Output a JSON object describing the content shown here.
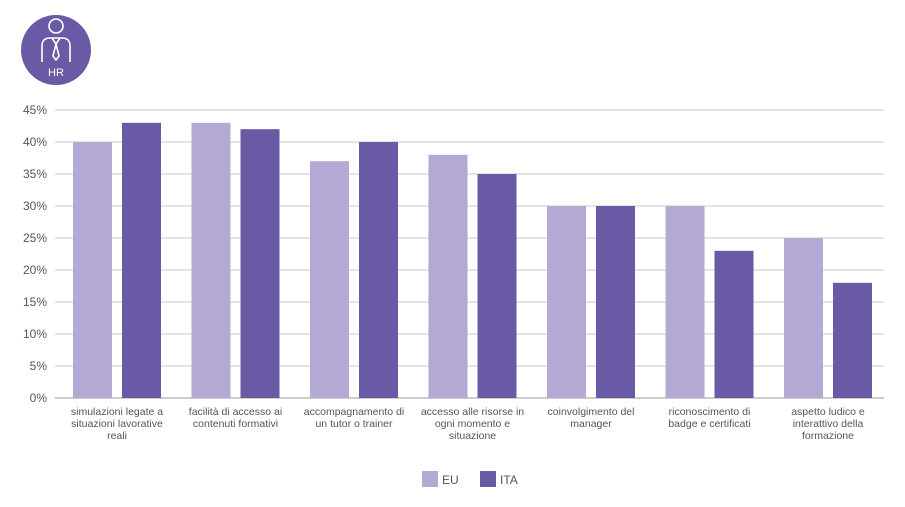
{
  "badge": {
    "label": "HR",
    "icon": "person-tie-icon",
    "color": "#6a5aa6"
  },
  "chart_data": {
    "type": "bar",
    "categories": [
      [
        "simulazioni legate a",
        "situazioni lavorative",
        "reali"
      ],
      [
        "facilità di accesso ai",
        "contenuti formativi"
      ],
      [
        "accompagnamento di",
        "un tutor o trainer"
      ],
      [
        "accesso alle risorse in",
        "ogni momento e",
        "situazione"
      ],
      [
        "coinvolgimento del",
        "manager"
      ],
      [
        "riconoscimento di",
        "badge e certificati"
      ],
      [
        "aspetto ludico e",
        "interattivo della",
        "formazione"
      ]
    ],
    "series": [
      {
        "name": "EU",
        "values": [
          40,
          43,
          37,
          38,
          30,
          30,
          25
        ],
        "color": "#b3a9d4"
      },
      {
        "name": "ITA",
        "values": [
          43,
          42,
          40,
          35,
          30,
          23,
          18
        ],
        "color": "#6a5aa6"
      }
    ],
    "ylim": [
      0,
      45
    ],
    "yticks": [
      "0%",
      "5%",
      "10%",
      "15%",
      "20%",
      "25%",
      "30%",
      "35%",
      "40%",
      "45%"
    ],
    "ytick_values": [
      0,
      5,
      10,
      15,
      20,
      25,
      30,
      35,
      40,
      45
    ],
    "grid": true,
    "legend_position": "bottom-center",
    "title": "",
    "xlabel": "",
    "ylabel": ""
  }
}
